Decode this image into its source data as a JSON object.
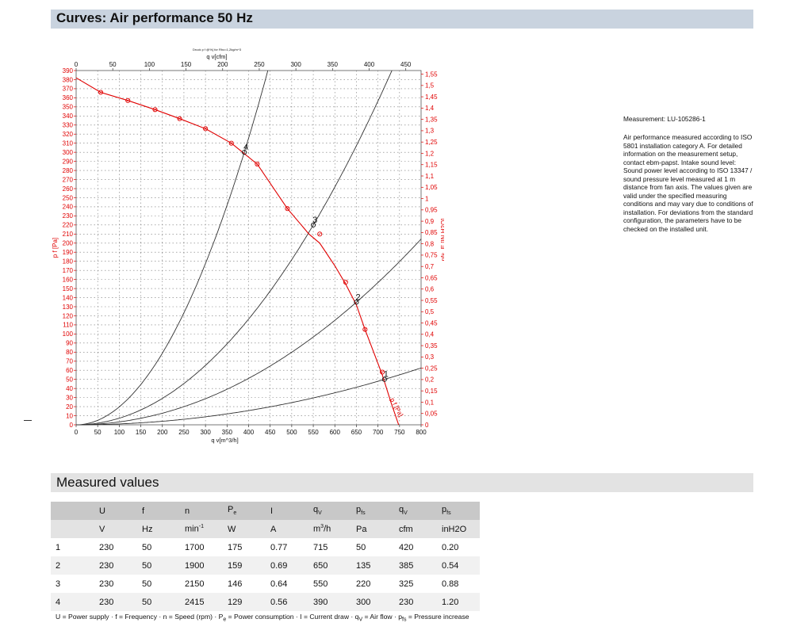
{
  "header": {
    "title": "Curves: Air performance 50 Hz"
  },
  "chart_data": {
    "type": "line",
    "top_small_label": "Druck p f @%{ for Rho=1,2kg/m^3",
    "x_bottom": {
      "label": "q v[m^3/h]",
      "range": [
        0,
        800
      ],
      "ticks": [
        0,
        50,
        100,
        150,
        200,
        250,
        300,
        350,
        400,
        450,
        500,
        550,
        600,
        650,
        700,
        750,
        800
      ]
    },
    "x_top": {
      "label": "q v[cfm]",
      "range": [
        0,
        470.9
      ],
      "ticks": [
        0,
        50,
        100,
        150,
        200,
        250,
        300,
        350,
        400,
        450
      ]
    },
    "y_left": {
      "label": "p f [Pa]",
      "range": [
        0,
        390
      ],
      "ticks": [
        0,
        10,
        20,
        30,
        40,
        50,
        60,
        70,
        80,
        90,
        100,
        110,
        120,
        130,
        140,
        150,
        160,
        170,
        180,
        190,
        200,
        210,
        220,
        230,
        240,
        250,
        260,
        270,
        280,
        290,
        300,
        310,
        320,
        330,
        340,
        350,
        360,
        370,
        380,
        390
      ]
    },
    "y_right": {
      "label": "pfs_E [IN H2O]",
      "range": [
        0,
        1.566
      ],
      "ticks": [
        "0",
        "0,05",
        "0,1",
        "0,15",
        "0,2",
        "0,25",
        "0,3",
        "0,35",
        "0,4",
        "0,45",
        "0,5",
        "0,55",
        "0,6",
        "0,65",
        "0,7",
        "0,75",
        "0,8",
        "0,85",
        "0,9",
        "0,95",
        "1",
        "1,05",
        "1,1",
        "1,15",
        "1,2",
        "1,25",
        "1,3",
        "1,35",
        "1,4",
        "1,45",
        "1,5",
        "1,55"
      ]
    },
    "grid": true,
    "pressure_curve": {
      "name": "p f [Pa]",
      "color": "#e00000",
      "points": [
        [
          0,
          382
        ],
        [
          57,
          366
        ],
        [
          120,
          357
        ],
        [
          183,
          347
        ],
        [
          240,
          337
        ],
        [
          300,
          326
        ],
        [
          360,
          310
        ],
        [
          420,
          287
        ],
        [
          490,
          238
        ],
        [
          540,
          210
        ],
        [
          565,
          200
        ],
        [
          600,
          175
        ],
        [
          625,
          155
        ],
        [
          650,
          132
        ],
        [
          670,
          105
        ],
        [
          690,
          80
        ],
        [
          710,
          55
        ],
        [
          730,
          25
        ],
        [
          748,
          0
        ]
      ],
      "markers": [
        [
          57,
          366
        ],
        [
          120,
          357
        ],
        [
          183,
          347
        ],
        [
          240,
          337
        ],
        [
          300,
          326
        ],
        [
          360,
          310
        ],
        [
          420,
          287
        ],
        [
          490,
          238
        ],
        [
          565,
          210
        ],
        [
          625,
          157
        ],
        [
          670,
          105
        ],
        [
          710,
          58
        ]
      ]
    },
    "system_curves": [
      {
        "label": "1",
        "point": [
          715,
          50
        ],
        "color": "#333333"
      },
      {
        "label": "2",
        "point": [
          650,
          135
        ],
        "color": "#333333"
      },
      {
        "label": "3",
        "point": [
          550,
          220
        ],
        "color": "#333333"
      },
      {
        "label": "4",
        "point": [
          390,
          300
        ],
        "color": "#333333"
      }
    ],
    "operating_point_labels": [
      "1",
      "2",
      "3",
      "4"
    ],
    "curve_tail_label": "p f [Pa]"
  },
  "measurement": {
    "title": "Measurement: LU-105286-1",
    "body": "Air performance measured according to ISO 5801 installation category A. For detailed information on the measurement setup, contact ebm-papst. Intake sound level: Sound power level according to ISO 13347 / sound pressure level measured at 1 m distance from fan axis. The values given are valid under the specified measuring conditions and may vary due to conditions of installation. For deviations from the standard configuration, the parameters have to be checked on the installed unit."
  },
  "measured": {
    "title": "Measured values",
    "headers": [
      {
        "main": "",
        "sub": ""
      },
      {
        "main": "U",
        "sub": ""
      },
      {
        "main": "f",
        "sub": ""
      },
      {
        "main": "n",
        "sub": ""
      },
      {
        "main": "P",
        "sub": "e"
      },
      {
        "main": "I",
        "sub": ""
      },
      {
        "main": "q",
        "sub": "V"
      },
      {
        "main": "p",
        "sub": "fs"
      },
      {
        "main": "q",
        "sub": "V"
      },
      {
        "main": "p",
        "sub": "fs"
      }
    ],
    "units": [
      "",
      "V",
      "Hz",
      "min-1",
      "W",
      "A",
      "m3/h",
      "Pa",
      "cfm",
      "inH2O"
    ],
    "rows": [
      [
        "1",
        "230",
        "50",
        "1700",
        "175",
        "0.77",
        "715",
        "50",
        "420",
        "0.20"
      ],
      [
        "2",
        "230",
        "50",
        "1900",
        "159",
        "0.69",
        "650",
        "135",
        "385",
        "0.54"
      ],
      [
        "3",
        "230",
        "50",
        "2150",
        "146",
        "0.64",
        "550",
        "220",
        "325",
        "0.88"
      ],
      [
        "4",
        "230",
        "50",
        "2415",
        "129",
        "0.56",
        "390",
        "300",
        "230",
        "1.20"
      ]
    ],
    "legend": "U = Power supply · f = Frequency · n = Speed (rpm) · Pe = Power consumption · I = Current draw · qV = Air flow · pfs = Pressure increase"
  }
}
